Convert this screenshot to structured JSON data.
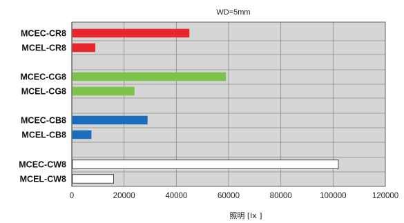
{
  "chart_data": {
    "type": "bar",
    "orientation": "horizontal",
    "title": "WD=5mm",
    "xlabel": "照明 [lx ]",
    "ylabel": "",
    "xlim": [
      0,
      120000
    ],
    "x_ticks": [
      0,
      20000,
      40000,
      60000,
      80000,
      100000,
      120000
    ],
    "x_tick_labels": [
      "0",
      "20000",
      "40000",
      "60000",
      "80000",
      "100000",
      "120000"
    ],
    "grid": true,
    "categories": [
      "MCEC-CR8",
      "MCEL-CR8",
      "MCEC-CG8",
      "MCEL-CG8",
      "MCEC-CB8",
      "MCEL-CB8",
      "MCEC-CW8",
      "MCEL-CW8"
    ],
    "values": [
      45000,
      9000,
      59000,
      24000,
      29000,
      7500,
      102000,
      16000
    ],
    "groups": [
      {
        "name": "red",
        "color": "#e8262e",
        "indices": [
          0,
          1
        ]
      },
      {
        "name": "green",
        "color": "#7dc24b",
        "indices": [
          2,
          3
        ]
      },
      {
        "name": "blue",
        "color": "#1a6dbd",
        "indices": [
          4,
          5
        ]
      },
      {
        "name": "white",
        "color": "#ffffff",
        "indices": [
          6,
          7
        ]
      }
    ]
  }
}
